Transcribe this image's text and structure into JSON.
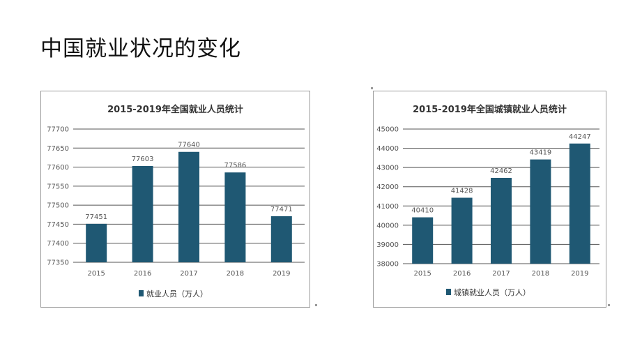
{
  "page": {
    "title": "中国就业状况的变化"
  },
  "colors": {
    "bar": "#1f5873",
    "grid": "#555555",
    "title": "#333333",
    "text": "#555555"
  },
  "chart_data": [
    {
      "type": "bar",
      "title": "2015-2019年全国就业人员统计",
      "categories": [
        "2015",
        "2016",
        "2017",
        "2018",
        "2019"
      ],
      "values": [
        77451,
        77603,
        77640,
        77586,
        77471
      ],
      "value_labels": [
        "77451",
        "77603",
        "77640",
        "77586",
        "77471"
      ],
      "yticks": [
        "77350",
        "77400",
        "77450",
        "77500",
        "77550",
        "77600",
        "77650",
        "77700"
      ],
      "ylim": [
        77350,
        77700
      ],
      "legend": "就业人员（万人）",
      "legend_position": "bottom",
      "xlabel": "",
      "ylabel": "",
      "grid": true
    },
    {
      "type": "bar",
      "title": "2015-2019年全国城镇就业人员统计",
      "categories": [
        "2015",
        "2016",
        "2017",
        "2018",
        "2019"
      ],
      "values": [
        40410,
        41428,
        42462,
        43419,
        44247
      ],
      "value_labels": [
        "40410",
        "41428",
        "42462",
        "43419",
        "44247"
      ],
      "yticks": [
        "38000",
        "39000",
        "40000",
        "41000",
        "42000",
        "43000",
        "44000",
        "45000"
      ],
      "ylim": [
        38000,
        45000
      ],
      "legend": "城镇就业人员（万人）",
      "legend_position": "bottom",
      "xlabel": "",
      "ylabel": "",
      "grid": true
    }
  ]
}
